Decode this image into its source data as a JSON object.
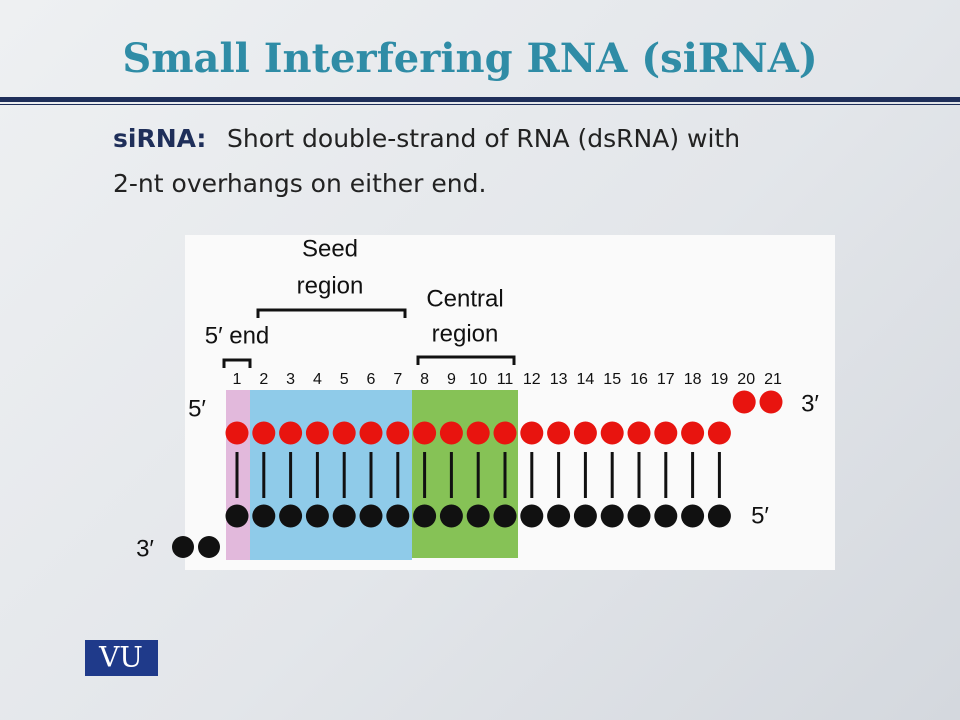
{
  "title": "Small Interfering RNA (siRNA)",
  "body": {
    "term": "siRNA:",
    "lines": [
      "Short double-strand of RNA (dsRNA) with",
      "2-nt overhangs on either end."
    ]
  },
  "diagram": {
    "seed_region": [
      "Seed",
      "region"
    ],
    "central_region": [
      "Central",
      "region"
    ],
    "five_end": "5′ end",
    "positions": [
      "1",
      "2",
      "3",
      "4",
      "5",
      "6",
      "7",
      "8",
      "9",
      "10",
      "11",
      "12",
      "13",
      "14",
      "15",
      "16",
      "17",
      "18",
      "19",
      "20",
      "21"
    ],
    "top_left": "5′",
    "top_right": "3′",
    "bottom_right": "5′",
    "bottom_left": "3′"
  },
  "logo": "VU"
}
